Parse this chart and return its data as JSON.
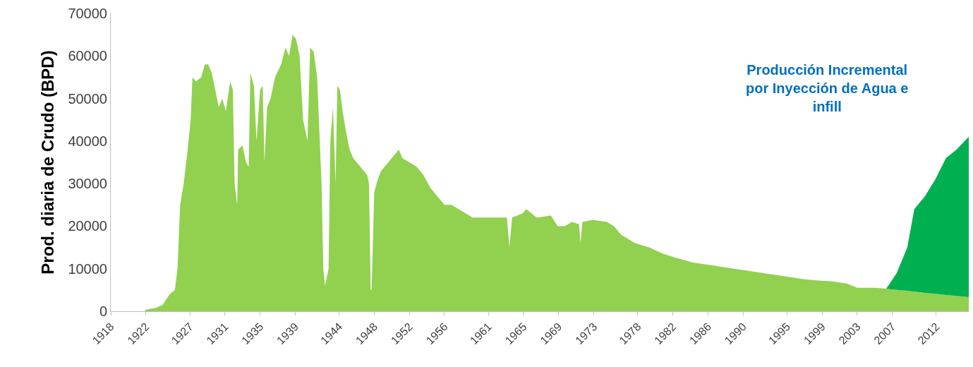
{
  "chart_data": {
    "type": "area",
    "stacked": true,
    "ylabel": "Prod. diaria de Crudo (BPD)",
    "annotations": [
      "Producción Incremental\npor Inyección de Agua e\ninfill"
    ],
    "x": [
      1921.9,
      1922.3,
      1923.1,
      1923.9,
      1924.7,
      1925.3,
      1925.6,
      1925.9,
      1926.3,
      1926.7,
      1927.1,
      1927.3,
      1927.7,
      1928.3,
      1928.7,
      1929.1,
      1929.5,
      1929.9,
      1930.3,
      1930.7,
      1931.1,
      1931.6,
      1931.9,
      1932.1,
      1932.4,
      1932.5,
      1933.0,
      1933.4,
      1933.7,
      1933.9,
      1934.3,
      1934.6,
      1935.0,
      1935.3,
      1935.5,
      1935.8,
      1936.2,
      1936.7,
      1937.4,
      1937.9,
      1938.3,
      1938.7,
      1939.1,
      1939.5,
      1939.9,
      1940.4,
      1940.7,
      1941.1,
      1941.5,
      1942.0,
      1942.2,
      1942.4,
      1942.8,
      1943.0,
      1943.3,
      1943.6,
      1943.8,
      1944.1,
      1944.4,
      1944.8,
      1945.2,
      1945.6,
      1946.0,
      1946.4,
      1946.8,
      1947.2,
      1947.4,
      1947.6,
      1947.7,
      1948.0,
      1948.4,
      1948.8,
      1949.6,
      1950.4,
      1950.8,
      1951.2,
      1952.0,
      1952.8,
      1953.6,
      1954.4,
      1955.2,
      1956.0,
      1956.8,
      1957.6,
      1958.4,
      1959.2,
      1960.0,
      1961.6,
      1963.1,
      1963.4,
      1963.7,
      1964.9,
      1965.3,
      1966.5,
      1968.1,
      1968.9,
      1969.7,
      1970.5,
      1971.3,
      1971.5,
      1971.7,
      1972.9,
      1974.5,
      1975.3,
      1976.1,
      1976.9,
      1977.7,
      1979.3,
      1980.9,
      1982.5,
      1984.2,
      1985.8,
      1987.4,
      1989.0,
      1990.6,
      1992.2,
      1993.8,
      1995.4,
      1997.0,
      1998.6,
      2000.2,
      2001.8,
      2003.0,
      2005.0,
      2006.3,
      2006.7,
      2007.5,
      2008.7,
      2009.5,
      2009.9,
      2010.7,
      2011.9,
      2013.1,
      2014.3,
      2015.7
    ],
    "series": [
      {
        "color": "#92d050",
        "values": [
          300,
          500,
          800,
          1500,
          4000,
          5000,
          10000,
          25000,
          30000,
          37000,
          45000,
          55000,
          54000,
          55000,
          58000,
          58000,
          56000,
          52000,
          48000,
          50000,
          47000,
          54000,
          52000,
          30000,
          25000,
          38000,
          39000,
          35000,
          34000,
          56000,
          53000,
          40000,
          52000,
          53000,
          35000,
          48000,
          50000,
          55000,
          58000,
          62000,
          60000,
          65000,
          64000,
          60000,
          45000,
          40000,
          62000,
          61000,
          55000,
          30000,
          10000,
          6000,
          10000,
          40000,
          48000,
          30000,
          53000,
          52000,
          47000,
          42000,
          38000,
          36000,
          35000,
          34000,
          33000,
          32000,
          30000,
          5000,
          5000,
          28000,
          31000,
          33000,
          35000,
          37000,
          38000,
          36000,
          35000,
          34000,
          32000,
          29000,
          27000,
          25000,
          25000,
          24000,
          23000,
          22000,
          22000,
          22000,
          22000,
          15000,
          22000,
          23000,
          24000,
          22000,
          22500,
          20000,
          20000,
          21000,
          20500,
          16000,
          21000,
          21500,
          21000,
          20000,
          18000,
          17000,
          16000,
          15000,
          13500,
          12500,
          11500,
          11000,
          10500,
          10000,
          9500,
          9000,
          8500,
          8000,
          7500,
          7200,
          7000,
          6500,
          5500,
          5500,
          5300,
          5200,
          5000,
          4800,
          4600,
          4500,
          4300,
          4100,
          3800,
          3600,
          3300
        ]
      },
      {
        "color": "#00b050",
        "values": [
          null,
          null,
          null,
          null,
          null,
          null,
          null,
          null,
          null,
          null,
          null,
          null,
          null,
          null,
          null,
          null,
          null,
          null,
          null,
          null,
          null,
          null,
          null,
          null,
          null,
          null,
          null,
          null,
          null,
          null,
          null,
          null,
          null,
          null,
          null,
          null,
          null,
          null,
          null,
          null,
          null,
          null,
          null,
          null,
          null,
          null,
          null,
          null,
          null,
          null,
          null,
          null,
          null,
          null,
          null,
          null,
          null,
          null,
          null,
          null,
          null,
          null,
          null,
          null,
          null,
          null,
          null,
          null,
          null,
          null,
          null,
          null,
          null,
          null,
          null,
          null,
          null,
          null,
          null,
          null,
          null,
          null,
          null,
          null,
          null,
          null,
          null,
          null,
          null,
          null,
          null,
          null,
          null,
          null,
          null,
          null,
          null,
          null,
          null,
          null,
          null,
          null,
          null,
          null,
          null,
          null,
          null,
          null,
          null,
          null,
          null,
          null,
          null,
          null,
          null,
          null,
          null,
          null,
          null,
          null,
          null,
          null,
          null,
          null,
          0,
          1300,
          4000,
          10200,
          19400,
          20500,
          22700,
          26900,
          32200,
          34400,
          37700
        ]
      }
    ],
    "xlim": [
      1918,
      2015.7
    ],
    "xticks": [
      1918,
      1922,
      1927,
      1931,
      1935,
      1939,
      1944,
      1948,
      1952,
      1956,
      1961,
      1965,
      1969,
      1973,
      1978,
      1982,
      1986,
      1990,
      1995,
      1999,
      2003,
      2007,
      2012
    ],
    "ylim": [
      0,
      70000
    ],
    "yticks": [
      0,
      10000,
      20000,
      30000,
      40000,
      50000,
      60000,
      70000
    ]
  }
}
